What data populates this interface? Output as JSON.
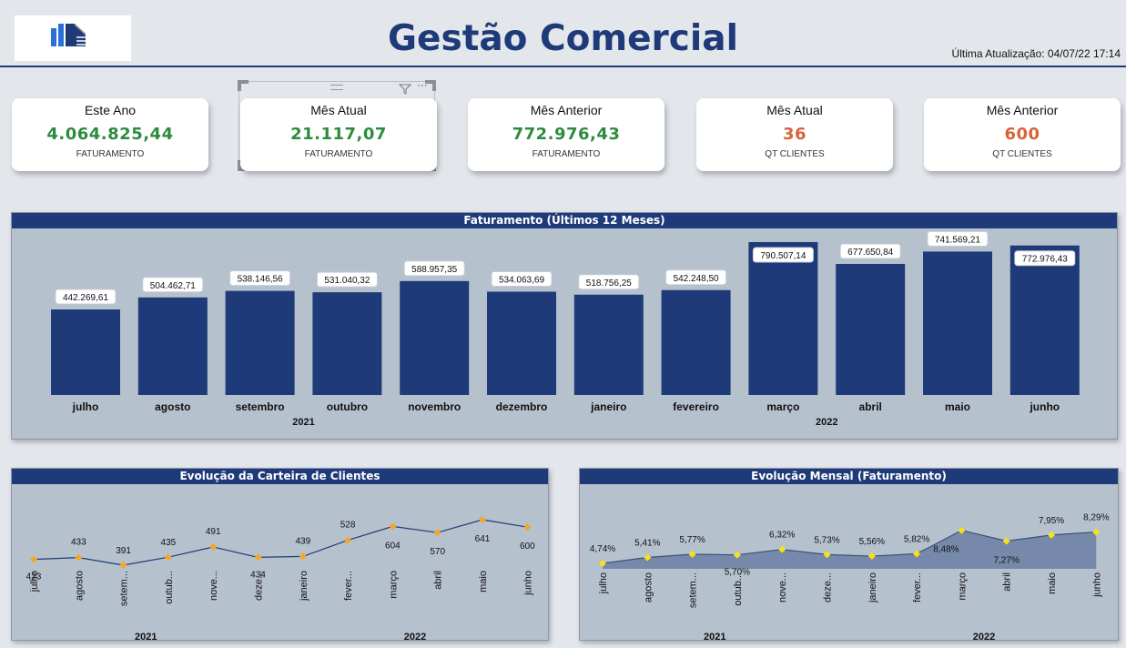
{
  "header": {
    "title": "Gestão Comercial",
    "last_update": "Última Atualização: 04/07/22  17:14"
  },
  "logo": {
    "icon": "building-bars-logo",
    "colors": [
      "#2a6fd6",
      "#1f3a78",
      "#8a8f96"
    ]
  },
  "kpis": [
    {
      "label": "Este Ano",
      "value": "4.064.825,44",
      "sublabel": "FATURAMENTO",
      "color": "#2e8b3e"
    },
    {
      "label": "Mês Atual",
      "value": "21.117,07",
      "sublabel": "FATURAMENTO",
      "color": "#2e8b3e"
    },
    {
      "label": "Mês Anterior",
      "value": "772.976,43",
      "sublabel": "FATURAMENTO",
      "color": "#2e8b3e"
    },
    {
      "label": "Mês Atual",
      "value": "36",
      "sublabel": "QT CLIENTES",
      "color": "#d8623b"
    },
    {
      "label": "Mês Anterior",
      "value": "600",
      "sublabel": "QT CLIENTES",
      "color": "#d8623b"
    }
  ],
  "visual_toolbar": {
    "icons": [
      "drag-handle-icon",
      "filter-icon",
      "more-options-icon"
    ]
  },
  "chart_data": [
    {
      "type": "bar",
      "title": "Faturamento (Últimos 12 Meses)",
      "categories": [
        "julho",
        "agosto",
        "setembro",
        "outubro",
        "novembro",
        "dezembro",
        "janeiro",
        "fevereiro",
        "março",
        "abril",
        "maio",
        "junho"
      ],
      "values": [
        442269.61,
        504462.71,
        538146.56,
        531040.32,
        588957.35,
        534063.69,
        518756.25,
        542248.5,
        790507.14,
        677650.84,
        741569.21,
        772976.43
      ],
      "labels": [
        "442.269,61",
        "504.462,71",
        "538.146,56",
        "531.040,32",
        "588.957,35",
        "534.063,69",
        "518.756,25",
        "542.248,50",
        "790.507,14",
        "677.650,84",
        "741.569,21",
        "772.976,43"
      ],
      "year_groups": [
        {
          "label": "2021",
          "count": 6
        },
        {
          "label": "2022",
          "count": 6
        }
      ],
      "bar_color": "#1f3a78"
    },
    {
      "type": "line",
      "title": "Evolução da Carteira de Clientes",
      "categories": [
        "julho",
        "agosto",
        "setem...",
        "outub...",
        "nove...",
        "deze...",
        "janeiro",
        "fever...",
        "março",
        "abril",
        "maio",
        "junho"
      ],
      "values": [
        423,
        433,
        391,
        435,
        491,
        434,
        439,
        528,
        604,
        570,
        641,
        600
      ],
      "labels": [
        "423",
        "433",
        "391",
        "435",
        "491",
        "434",
        "439",
        "528",
        "604",
        "570",
        "641",
        "600"
      ],
      "year_groups": [
        {
          "label": "2021",
          "count": 6
        },
        {
          "label": "2022",
          "count": 6
        }
      ],
      "line_color": "#1f3a78",
      "marker_color": "#f5a623"
    },
    {
      "type": "area",
      "title": "Evolução Mensal (Faturamento)",
      "categories": [
        "julho",
        "agosto",
        "setem...",
        "outub...",
        "nove...",
        "deze...",
        "janeiro",
        "fever...",
        "março",
        "abril",
        "maio",
        "junho"
      ],
      "values": [
        4.74,
        5.41,
        5.77,
        5.7,
        6.32,
        5.73,
        5.56,
        5.82,
        8.48,
        7.27,
        7.95,
        8.29
      ],
      "labels": [
        "4,74%",
        "5,41%",
        "5,77%",
        "5,70%",
        "6,32%",
        "5,73%",
        "5,56%",
        "5,82%",
        "8,48%",
        "7,27%",
        "7,95%",
        "8,29%"
      ],
      "year_groups": [
        {
          "label": "2021",
          "count": 6
        },
        {
          "label": "2022",
          "count": 6
        }
      ],
      "fill_color": "#6c7fa3",
      "marker_color": "#f5e21a"
    }
  ]
}
